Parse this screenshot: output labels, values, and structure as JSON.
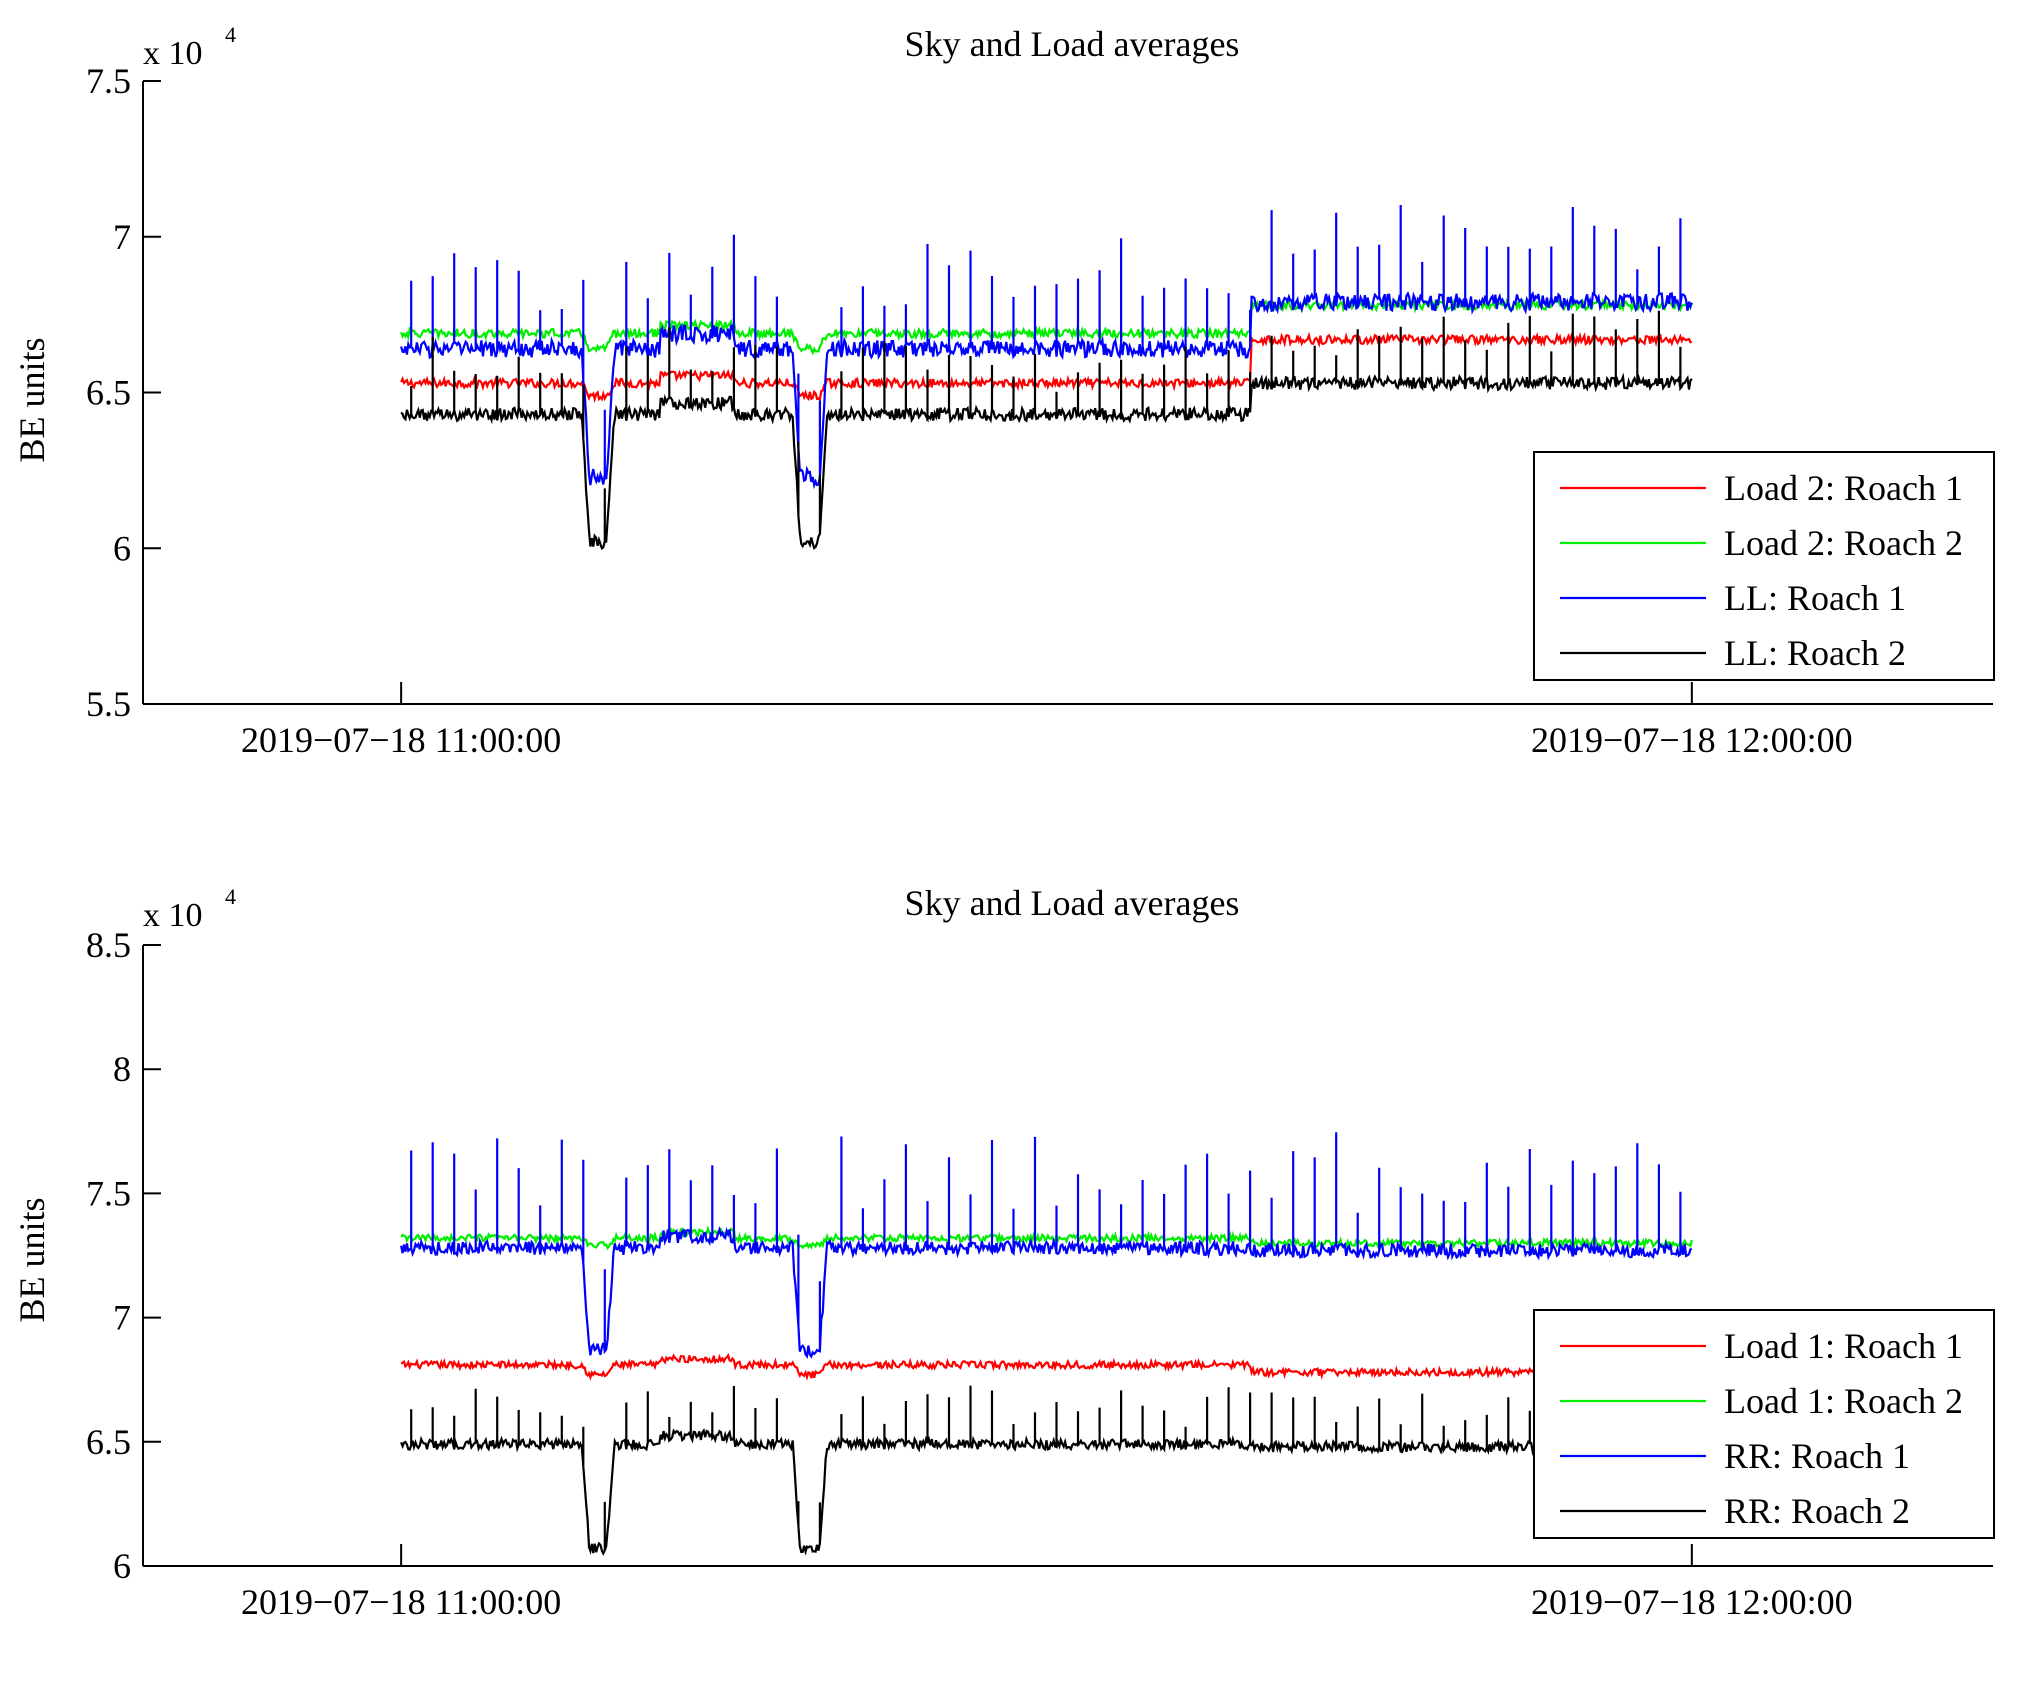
{
  "chart_data": [
    {
      "type": "line",
      "title": "Sky and Load averages",
      "xlabel": "",
      "ylabel": "BE units",
      "y_multiplier_label": "x 10",
      "y_multiplier_exponent": "4",
      "ylim": [
        5.5,
        7.5
      ],
      "yticks": [
        {
          "value": 5.5,
          "label": "5.5"
        },
        {
          "value": 6,
          "label": "6"
        },
        {
          "value": 6.5,
          "label": "6.5"
        },
        {
          "value": 7,
          "label": "7"
        },
        {
          "value": 7.5,
          "label": "7.5"
        }
      ],
      "xlim_minutes": [
        -12,
        74
      ],
      "xticks": [
        {
          "value": 0,
          "label": "2019−07−18 11:00:00"
        },
        {
          "value": 60,
          "label": "2019−07−18 12:00:00"
        }
      ],
      "legend_position": "lower-right",
      "data_x_range_minutes": [
        0,
        60
      ],
      "series": [
        {
          "name": "Load 2: Roach 1",
          "color": "#ff0000",
          "base": 6.53,
          "dip": 6.49,
          "after_step": 6.67,
          "step_at": 39.5,
          "noise": 0.02,
          "spike_amp": 0.0,
          "fall_depth": 0.0
        },
        {
          "name": "Load 2: Roach 2",
          "color": "#00ee00",
          "base": 6.69,
          "dip": 6.64,
          "after_step": 6.78,
          "step_at": 39.5,
          "noise": 0.02,
          "spike_amp": 0.0,
          "fall_depth": 0.0
        },
        {
          "name": "LL: Roach 1",
          "color": "#0000ff",
          "base": 6.64,
          "dip": 6.23,
          "after_step": 6.79,
          "step_at": 39.5,
          "noise": 0.04,
          "spike_amp": 0.28,
          "fall_depth": 0.0
        },
        {
          "name": "LL: Roach 2",
          "color": "#000000",
          "base": 6.43,
          "dip": 6.02,
          "after_step": 6.53,
          "step_at": 39.5,
          "noise": 0.03,
          "spike_amp": 0.2,
          "fall_depth": 0.0
        }
      ]
    },
    {
      "type": "line",
      "title": "Sky and Load averages",
      "xlabel": "",
      "ylabel": "BE units",
      "y_multiplier_label": "x 10",
      "y_multiplier_exponent": "4",
      "ylim": [
        6,
        8.5
      ],
      "yticks": [
        {
          "value": 6,
          "label": "6"
        },
        {
          "value": 6.5,
          "label": "6.5"
        },
        {
          "value": 7,
          "label": "7"
        },
        {
          "value": 7.5,
          "label": "7.5"
        },
        {
          "value": 8,
          "label": "8"
        },
        {
          "value": 8.5,
          "label": "8.5"
        }
      ],
      "xlim_minutes": [
        -12,
        74
      ],
      "xticks": [
        {
          "value": 0,
          "label": "2019−07−18 11:00:00"
        },
        {
          "value": 60,
          "label": "2019−07−18 12:00:00"
        }
      ],
      "legend_position": "lower-right",
      "data_x_range_minutes": [
        0,
        60
      ],
      "series": [
        {
          "name": "Load 1: Roach 1",
          "color": "#ff0000",
          "base": 6.81,
          "dip": 6.77,
          "after_step": 6.78,
          "step_at": 39.5,
          "noise": 0.02,
          "spike_amp": 0.0,
          "fall_depth": 0.0
        },
        {
          "name": "Load 1: Roach 2",
          "color": "#00ee00",
          "base": 7.32,
          "dip": 7.29,
          "after_step": 7.3,
          "step_at": 39.5,
          "noise": 0.02,
          "spike_amp": 0.0,
          "fall_depth": 0.0
        },
        {
          "name": "RR: Roach 1",
          "color": "#0000ff",
          "base": 7.28,
          "dip": 6.87,
          "after_step": 7.27,
          "step_at": 39.5,
          "noise": 0.04,
          "spike_amp": 0.38,
          "fall_depth": 0.0
        },
        {
          "name": "RR: Roach 2",
          "color": "#000000",
          "base": 6.49,
          "dip": 6.07,
          "after_step": 6.48,
          "step_at": 39.5,
          "noise": 0.03,
          "spike_amp": 0.2,
          "fall_depth": 0.0
        }
      ]
    }
  ]
}
